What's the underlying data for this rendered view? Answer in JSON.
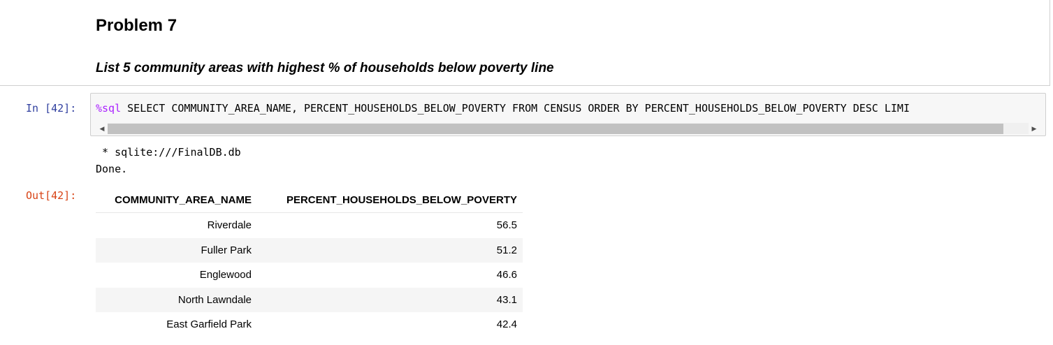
{
  "markdown": {
    "title": "Problem 7",
    "subtitle": "List 5 community areas with highest % of households below poverty line"
  },
  "input_cell": {
    "prompt": "In [42]:",
    "magic": "%sql",
    "code": " SELECT COMMUNITY_AREA_NAME, PERCENT_HOUSEHOLDS_BELOW_POVERTY FROM CENSUS ORDER BY PERCENT_HOUSEHOLDS_BELOW_POVERTY DESC LIMI"
  },
  "stdout": {
    "line1": " * sqlite:///FinalDB.db",
    "line2": "Done."
  },
  "output_cell": {
    "prompt": "Out[42]:",
    "columns": [
      "COMMUNITY_AREA_NAME",
      "PERCENT_HOUSEHOLDS_BELOW_POVERTY"
    ],
    "rows": [
      [
        "Riverdale",
        "56.5"
      ],
      [
        "Fuller Park",
        "51.2"
      ],
      [
        "Englewood",
        "46.6"
      ],
      [
        "North Lawndale",
        "43.1"
      ],
      [
        "East Garfield Park",
        "42.4"
      ]
    ]
  },
  "colors": {
    "in_prompt": "#303f9f",
    "out_prompt": "#d84315",
    "magic": "#aa22ff"
  },
  "icons": {
    "scroll_left": "chevron-left-icon",
    "scroll_right": "chevron-right-icon"
  }
}
